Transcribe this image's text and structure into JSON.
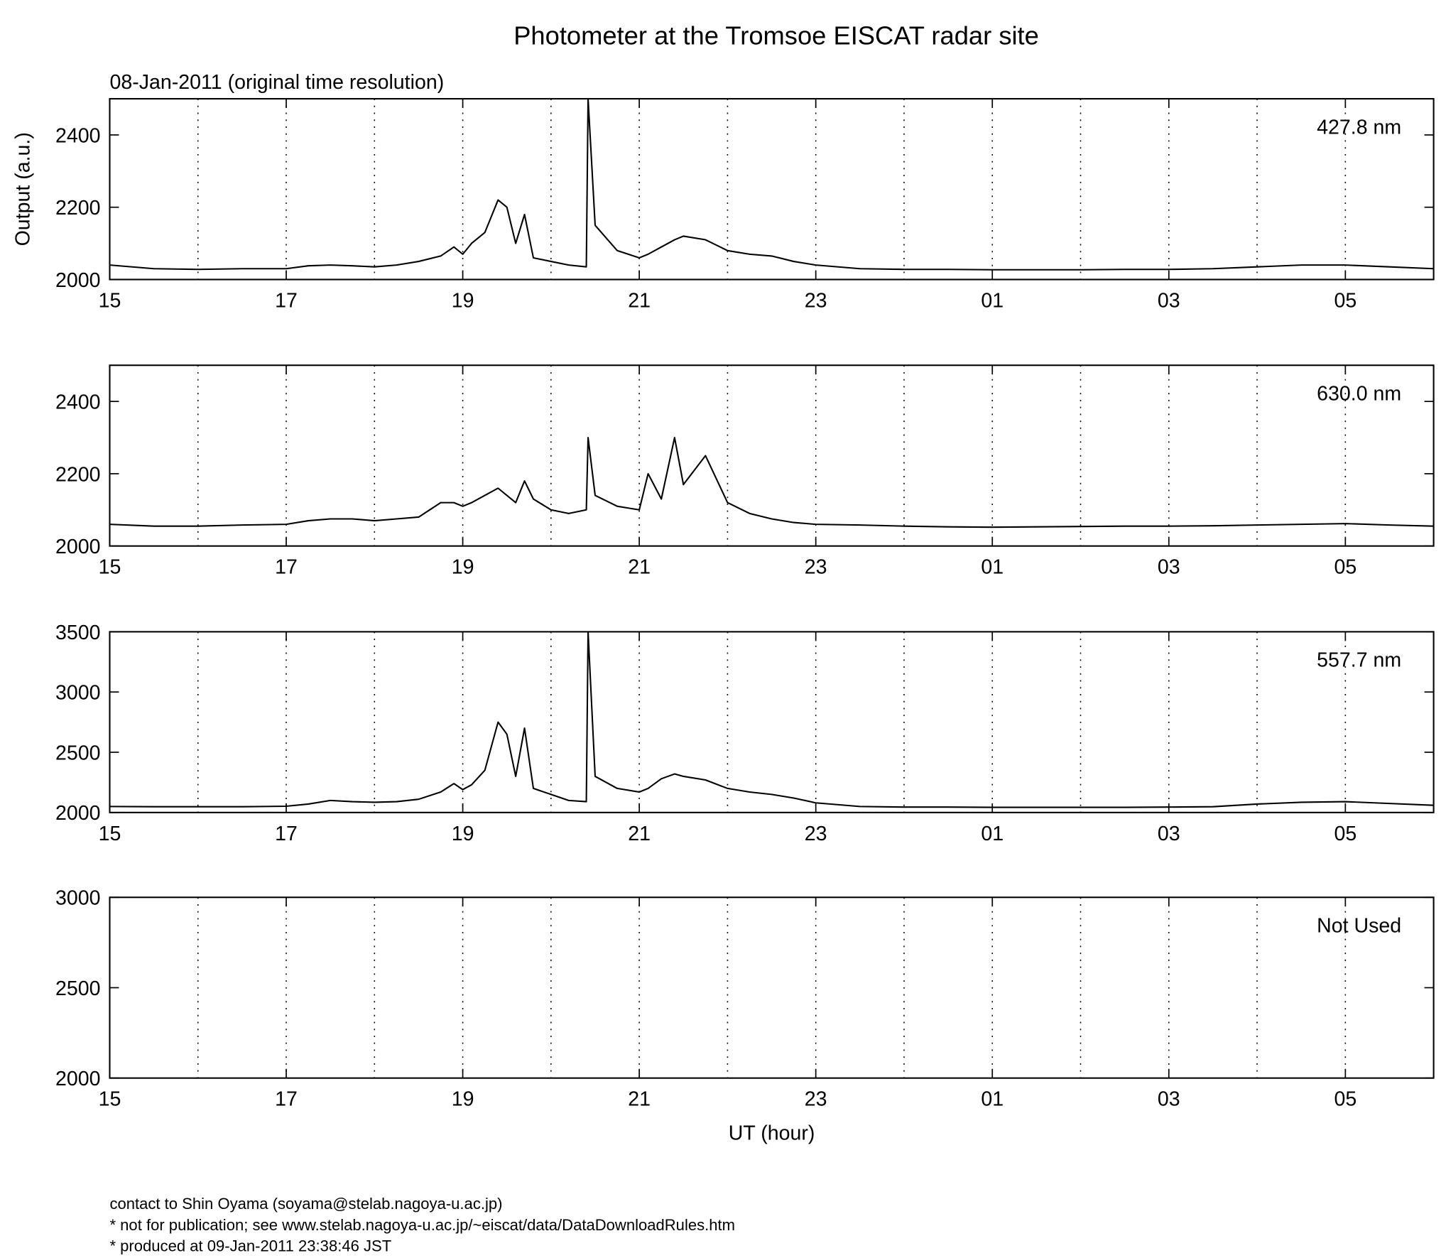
{
  "title": "Photometer at the Tromsoe EISCAT radar site",
  "subtitle": "08-Jan-2011 (original time resolution)",
  "ylabel": "Output (a.u.)",
  "xlabel": "UT (hour)",
  "footer": [
    "contact to Shin Oyama (soyama@stelab.nagoya-u.ac.jp)",
    "* not for publication; see www.stelab.nagoya-u.ac.jp/~eiscat/data/DataDownloadRules.htm",
    "* produced at 09-Jan-2011 23:38:46 JST"
  ],
  "chart_data": [
    {
      "type": "line",
      "xlim": [
        15,
        30
      ],
      "ylim": [
        2000,
        2500
      ],
      "yticks": [
        2000,
        2200,
        2400
      ],
      "xticks": [
        15,
        17,
        19,
        21,
        23,
        {
          "value": 25,
          "label": "01"
        },
        {
          "value": 27,
          "label": "03"
        },
        {
          "value": 29,
          "label": "05"
        }
      ],
      "xminorticks": [
        16,
        18,
        20,
        22,
        24,
        26,
        28
      ],
      "grid": true,
      "x": [
        15,
        15.5,
        16,
        16.5,
        17,
        17.25,
        17.5,
        17.75,
        18,
        18.25,
        18.5,
        18.75,
        18.9,
        19,
        19.1,
        19.25,
        19.4,
        19.5,
        19.6,
        19.7,
        19.8,
        20,
        20.2,
        20.4,
        20.42,
        20.5,
        20.75,
        21,
        21.1,
        21.25,
        21.4,
        21.5,
        21.75,
        22,
        22.25,
        22.5,
        22.75,
        23,
        23.5,
        24,
        24.5,
        25,
        25.5,
        26,
        26.5,
        27,
        27.5,
        28,
        28.5,
        29,
        29.5,
        30
      ],
      "series": [
        {
          "name": "427.8 nm",
          "color": "#000000",
          "values": [
            2040,
            2030,
            2028,
            2030,
            2030,
            2038,
            2040,
            2038,
            2035,
            2040,
            2050,
            2065,
            2090,
            2070,
            2100,
            2130,
            2220,
            2200,
            2100,
            2180,
            2060,
            2050,
            2040,
            2035,
            2500,
            2150,
            2080,
            2060,
            2070,
            2090,
            2110,
            2120,
            2110,
            2080,
            2070,
            2065,
            2050,
            2040,
            2030,
            2028,
            2028,
            2027,
            2027,
            2027,
            2028,
            2028,
            2030,
            2035,
            2040,
            2040,
            2035,
            2030
          ]
        }
      ]
    },
    {
      "type": "line",
      "xlim": [
        15,
        30
      ],
      "ylim": [
        2000,
        2500
      ],
      "yticks": [
        2000,
        2200,
        2400
      ],
      "xticks": [
        15,
        17,
        19,
        21,
        23,
        {
          "value": 25,
          "label": "01"
        },
        {
          "value": 27,
          "label": "03"
        },
        {
          "value": 29,
          "label": "05"
        }
      ],
      "xminorticks": [
        16,
        18,
        20,
        22,
        24,
        26,
        28
      ],
      "grid": true,
      "x": [
        15,
        15.5,
        16,
        16.5,
        17,
        17.25,
        17.5,
        17.75,
        18,
        18.25,
        18.5,
        18.75,
        18.9,
        19,
        19.1,
        19.25,
        19.4,
        19.5,
        19.6,
        19.7,
        19.8,
        20,
        20.2,
        20.4,
        20.42,
        20.5,
        20.75,
        21,
        21.1,
        21.25,
        21.4,
        21.5,
        21.75,
        22,
        22.25,
        22.5,
        22.75,
        23,
        23.5,
        24,
        24.5,
        25,
        25.5,
        26,
        26.5,
        27,
        27.5,
        28,
        28.5,
        29,
        29.5,
        30
      ],
      "series": [
        {
          "name": "630.0 nm",
          "color": "#000000",
          "values": [
            2060,
            2055,
            2055,
            2058,
            2060,
            2070,
            2075,
            2075,
            2070,
            2075,
            2080,
            2120,
            2120,
            2110,
            2120,
            2140,
            2160,
            2140,
            2120,
            2180,
            2130,
            2100,
            2090,
            2100,
            2300,
            2140,
            2110,
            2100,
            2200,
            2130,
            2300,
            2170,
            2250,
            2120,
            2090,
            2075,
            2065,
            2060,
            2058,
            2055,
            2053,
            2052,
            2053,
            2054,
            2055,
            2055,
            2056,
            2058,
            2060,
            2062,
            2058,
            2055
          ]
        }
      ]
    },
    {
      "type": "line",
      "xlim": [
        15,
        30
      ],
      "ylim": [
        2000,
        3500
      ],
      "yticks": [
        2000,
        2500,
        3000,
        3500
      ],
      "xticks": [
        15,
        17,
        19,
        21,
        23,
        {
          "value": 25,
          "label": "01"
        },
        {
          "value": 27,
          "label": "03"
        },
        {
          "value": 29,
          "label": "05"
        }
      ],
      "xminorticks": [
        16,
        18,
        20,
        22,
        24,
        26,
        28
      ],
      "grid": true,
      "x": [
        15,
        15.5,
        16,
        16.5,
        17,
        17.25,
        17.5,
        17.75,
        18,
        18.25,
        18.5,
        18.75,
        18.9,
        19,
        19.1,
        19.25,
        19.4,
        19.5,
        19.6,
        19.7,
        19.8,
        20,
        20.2,
        20.4,
        20.42,
        20.5,
        20.75,
        21,
        21.1,
        21.25,
        21.4,
        21.5,
        21.75,
        22,
        22.25,
        22.5,
        22.75,
        23,
        23.5,
        24,
        24.5,
        25,
        25.5,
        26,
        26.5,
        27,
        27.5,
        28,
        28.5,
        29,
        29.5,
        30
      ],
      "series": [
        {
          "name": "557.7 nm",
          "color": "#000000",
          "values": [
            2050,
            2048,
            2048,
            2048,
            2052,
            2070,
            2100,
            2090,
            2085,
            2090,
            2110,
            2170,
            2240,
            2190,
            2230,
            2350,
            2750,
            2650,
            2300,
            2700,
            2200,
            2150,
            2100,
            2090,
            3500,
            2300,
            2200,
            2170,
            2200,
            2280,
            2320,
            2300,
            2270,
            2200,
            2170,
            2150,
            2120,
            2080,
            2050,
            2045,
            2045,
            2043,
            2043,
            2043,
            2043,
            2045,
            2048,
            2070,
            2085,
            2090,
            2075,
            2060
          ]
        }
      ]
    },
    {
      "type": "line",
      "xlim": [
        15,
        30
      ],
      "ylim": [
        2000,
        3000
      ],
      "yticks": [
        2000,
        2500,
        3000
      ],
      "xticks": [
        15,
        17,
        19,
        21,
        23,
        {
          "value": 25,
          "label": "01"
        },
        {
          "value": 27,
          "label": "03"
        },
        {
          "value": 29,
          "label": "05"
        }
      ],
      "xminorticks": [
        16,
        18,
        20,
        22,
        24,
        26,
        28
      ],
      "grid": true,
      "label": "Not Used",
      "x": [],
      "series": []
    }
  ]
}
